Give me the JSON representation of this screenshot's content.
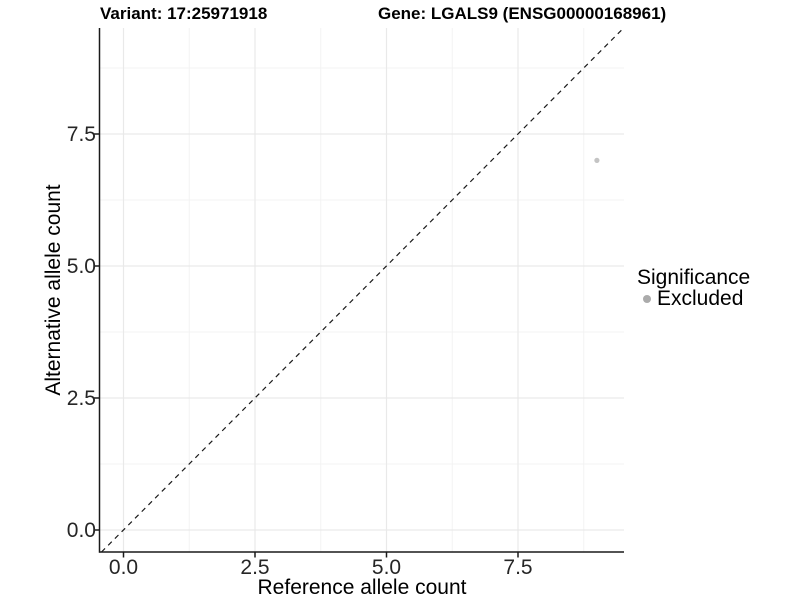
{
  "header": {
    "variant_title": "Variant: 17:25971918",
    "gene_title": "Gene: LGALS9 (ENSG00000168961)"
  },
  "axes": {
    "x": {
      "label": "Reference allele count",
      "tick_labels": [
        "0.0",
        "2.5",
        "5.0",
        "7.5"
      ]
    },
    "y": {
      "label": "Alternative allele count",
      "tick_labels": [
        "0.0",
        "2.5",
        "5.0",
        "7.5"
      ]
    }
  },
  "legend": {
    "title": "Significance",
    "entries": [
      {
        "label": "Excluded",
        "marker": "circle-icon",
        "color": "#ababab"
      }
    ]
  },
  "colors": {
    "point": "#c4c4c4",
    "legend_key": "#ababab",
    "grid_major": "#e9e9e9",
    "grid_minor": "#f3f3f3",
    "axis_line": "#1a1a1a",
    "reference_line": "#1a1a1a"
  },
  "chart_data": {
    "type": "scatter",
    "title": "Variant: 17:25971918 / Gene: LGALS9 (ENSG00000168961)",
    "xlabel": "Reference allele count",
    "ylabel": "Alternative allele count",
    "xlim": [
      -0.45,
      9.5
    ],
    "ylim": [
      -0.42,
      9.5
    ],
    "xticks": [
      0.0,
      2.5,
      5.0,
      7.5
    ],
    "yticks": [
      0.0,
      2.5,
      5.0,
      7.5
    ],
    "grid": true,
    "series": [
      {
        "name": "Excluded",
        "points": [
          {
            "x": 9,
            "y": 7
          }
        ],
        "color": "#c4c4c4",
        "marker_radius": 2.6
      }
    ],
    "reference_line": {
      "equation": "y = x",
      "style": "dashed",
      "color": "#1a1a1a"
    },
    "legend": {
      "title": "Significance",
      "position": "right",
      "entries": [
        "Excluded"
      ]
    }
  }
}
